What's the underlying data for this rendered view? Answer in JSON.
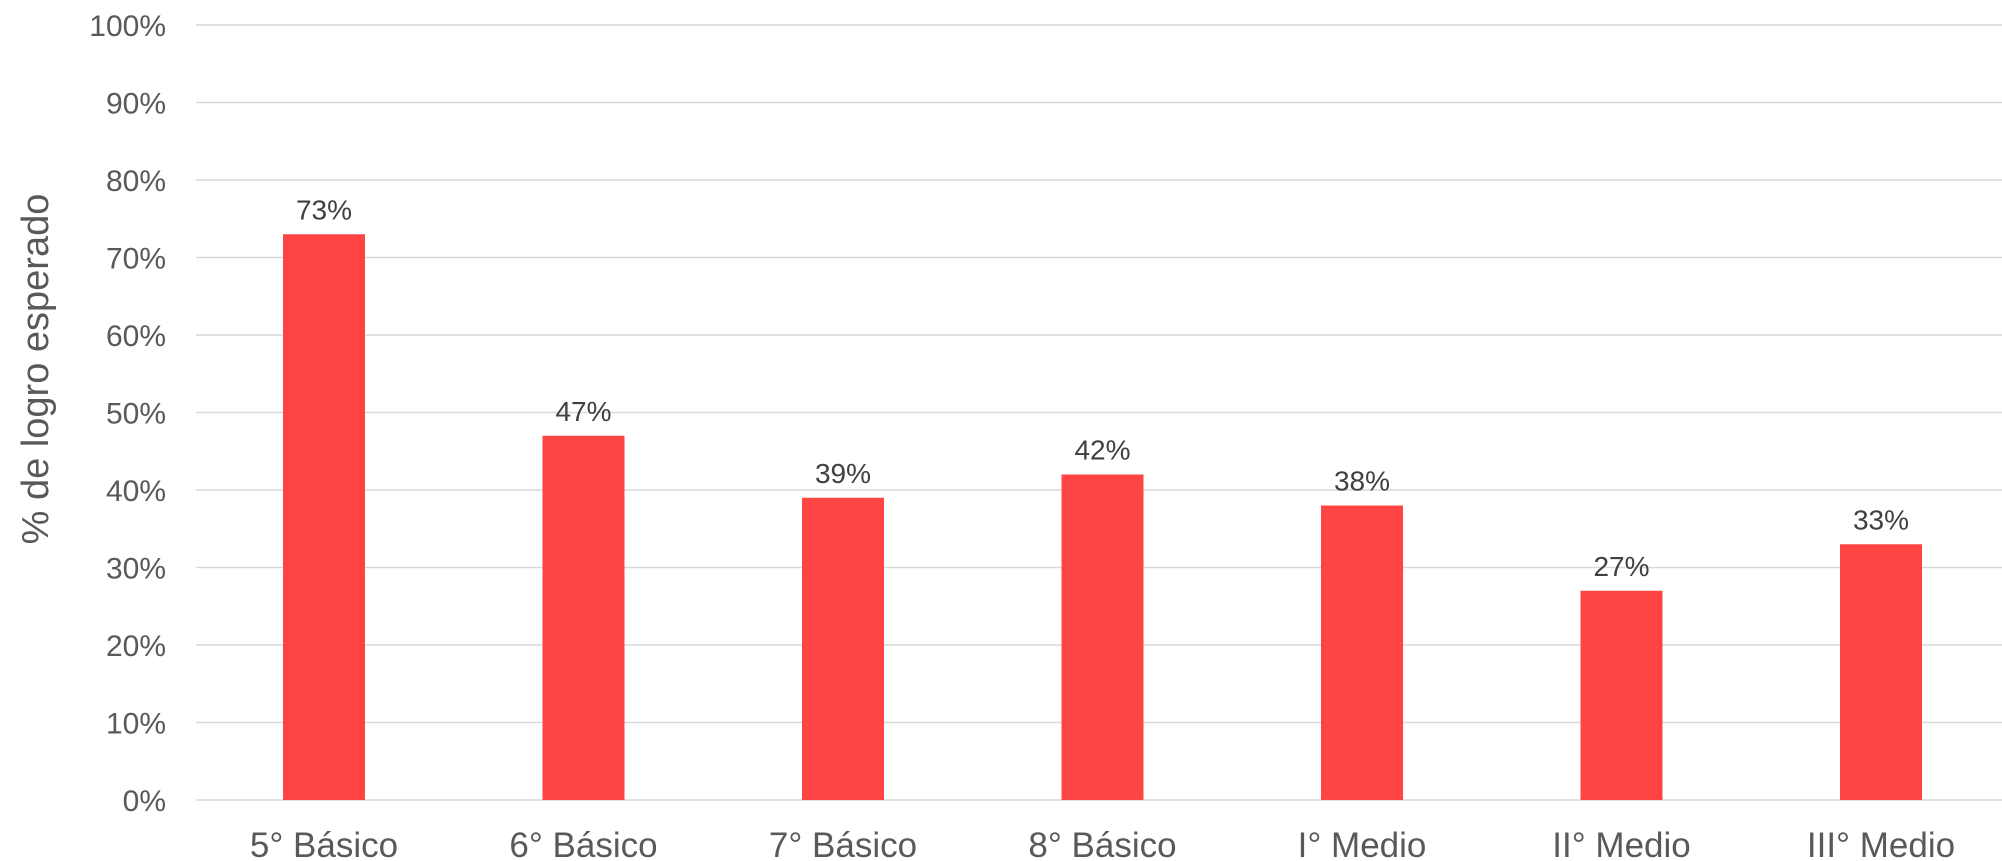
{
  "chart_data": {
    "type": "bar",
    "title": "",
    "xlabel": "",
    "ylabel": "% de logro esperado",
    "categories": [
      "5° Básico",
      "6° Básico",
      "7° Básico",
      "8° Básico",
      "I°  Medio",
      "II° Medio",
      "III° Medio"
    ],
    "values": [
      73,
      47,
      39,
      42,
      38,
      27,
      33
    ],
    "data_labels": [
      "73%",
      "47%",
      "39%",
      "42%",
      "38%",
      "27%",
      "33%"
    ],
    "ylim": [
      0,
      100
    ],
    "y_ticks": [
      0,
      10,
      20,
      30,
      40,
      50,
      60,
      70,
      80,
      90,
      100
    ],
    "y_tick_labels": [
      "0%",
      "10%",
      "20%",
      "30%",
      "40%",
      "50%",
      "60%",
      "70%",
      "80%",
      "90%",
      "100%"
    ],
    "grid": true,
    "legend": "none",
    "colors": {
      "bar": "#FF4444",
      "grid": "#D9D9D9",
      "axis_text": "#595959",
      "data_label_text": "#404040"
    }
  }
}
